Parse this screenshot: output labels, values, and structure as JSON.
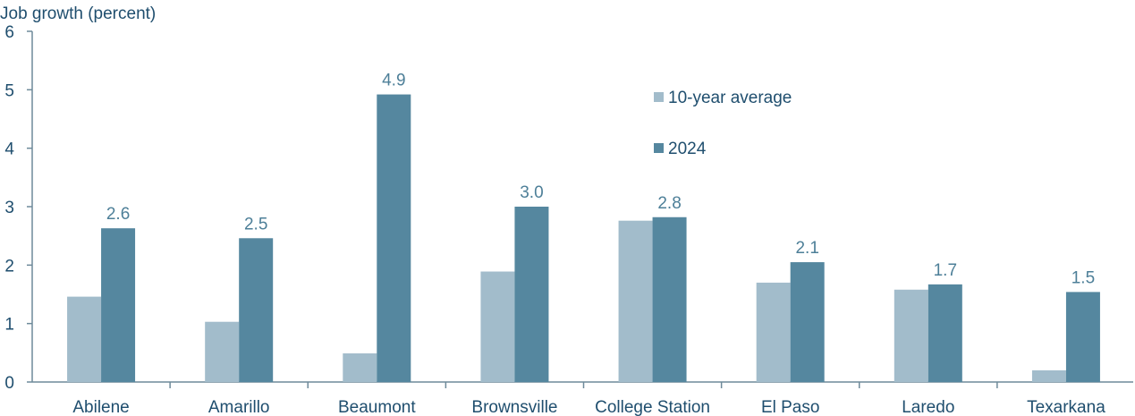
{
  "chart_data": {
    "type": "bar",
    "ylabel": "Job growth (percent)",
    "xlabel": "",
    "ylim": [
      0,
      6
    ],
    "yticks": [
      0,
      1,
      2,
      3,
      4,
      5,
      6
    ],
    "categories": [
      "Abilene",
      "Amarillo",
      "Beaumont",
      "Brownsville",
      "College Station",
      "El Paso",
      "Laredo",
      "Texarkana"
    ],
    "series": [
      {
        "name": "10-year average",
        "color": "#a2bccb",
        "values": [
          1.46,
          1.03,
          0.49,
          1.89,
          2.76,
          1.7,
          1.58,
          0.2
        ],
        "labels": [
          "",
          "",
          "",
          "",
          "",
          "",
          "",
          ""
        ]
      },
      {
        "name": "2024",
        "color": "#55879f",
        "values": [
          2.63,
          2.46,
          4.92,
          3.0,
          2.82,
          2.05,
          1.67,
          1.54
        ],
        "labels": [
          "2.6",
          "2.5",
          "4.9",
          "3.0",
          "2.8",
          "2.1",
          "1.7",
          "1.5"
        ]
      }
    ],
    "legend": {
      "position": "top-center"
    },
    "grid": false
  }
}
